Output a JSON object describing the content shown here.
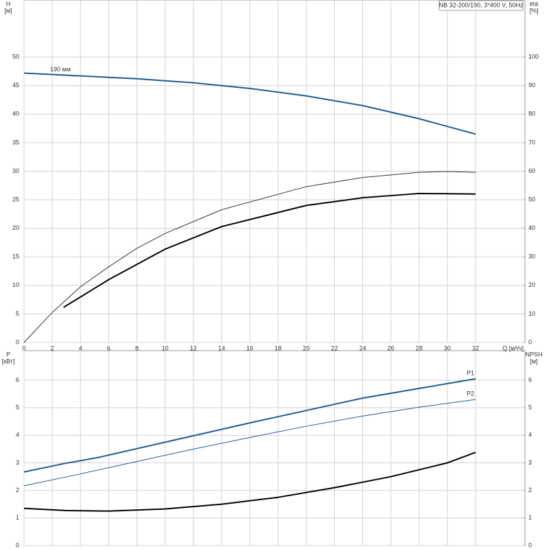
{
  "chart_data": [
    {
      "type": "line",
      "title": "NB 32-200/190, 3*400 V, 50Hz",
      "ylabel": "H",
      "yunit": "[м]",
      "y2label": "eta",
      "y2unit": "[%]",
      "xlabel": "Q [м³/ч]",
      "xlim": [
        0,
        35.5
      ],
      "xticks": [
        0,
        2,
        4,
        6,
        8,
        10,
        12,
        14,
        16,
        18,
        20,
        22,
        24,
        26,
        28,
        30,
        32
      ],
      "ylim": [
        0,
        60
      ],
      "yticks": [
        0,
        5,
        10,
        15,
        20,
        25,
        30,
        35,
        40,
        45,
        50
      ],
      "y2lim": [
        0,
        120
      ],
      "y2ticks": [
        0,
        10,
        20,
        30,
        40,
        50,
        60,
        70,
        80,
        90,
        100
      ],
      "grid": true,
      "show_xtick_labels": true,
      "series": [
        {
          "name": "190 мм",
          "label_at": "start",
          "color": "#1f5a8f",
          "width": 2,
          "x": [
            0,
            4,
            8,
            12,
            16,
            20,
            24,
            28,
            32
          ],
          "values": [
            47.2,
            46.7,
            46.2,
            45.5,
            44.5,
            43.2,
            41.5,
            39.2,
            36.5
          ]
        },
        {
          "color": "#333333",
          "width": 1,
          "axis": "y2",
          "x": [
            0,
            2,
            4,
            6,
            8,
            10,
            14,
            20,
            24,
            28,
            30,
            32
          ],
          "values": [
            0,
            10.5,
            19.5,
            26.5,
            33,
            38.2,
            46.5,
            54.6,
            57.8,
            59.6,
            59.9,
            59.6
          ]
        },
        {
          "color": "#000000",
          "width": 2,
          "axis": "y2",
          "x": [
            2.8,
            6,
            10,
            14,
            20,
            24,
            28,
            32
          ],
          "values": [
            12.3,
            22,
            32.7,
            40.6,
            48,
            50.7,
            52.2,
            52
          ]
        }
      ]
    },
    {
      "type": "line",
      "ylabel": "P",
      "yunit": "[кВт]",
      "y2label": "NPSH",
      "y2unit": "[м]",
      "xlim": [
        0,
        35.5
      ],
      "xticks": [
        0,
        2,
        4,
        6,
        8,
        10,
        12,
        14,
        16,
        18,
        20,
        22,
        24,
        26,
        28,
        30,
        32
      ],
      "ylim": [
        0,
        7.07
      ],
      "yticks": [
        0,
        1,
        2,
        3,
        4,
        5,
        6
      ],
      "y2lim": [
        0,
        7.07
      ],
      "y2ticks": [
        0,
        1,
        2,
        3,
        4,
        5,
        6
      ],
      "grid": true,
      "show_xtick_labels": false,
      "series": [
        {
          "name": "P1",
          "label_at": "end",
          "color": "#1f5a8f",
          "width": 2,
          "x": [
            0,
            2.8,
            5.3,
            10,
            16,
            20,
            24,
            28,
            32
          ],
          "values": [
            2.67,
            2.97,
            3.2,
            3.75,
            4.45,
            4.9,
            5.35,
            5.7,
            6.05
          ]
        },
        {
          "name": "P2",
          "label_at": "end",
          "color": "#1f5a8f",
          "width": 1,
          "x": [
            0,
            4,
            8,
            12,
            16,
            20,
            24,
            28,
            32
          ],
          "values": [
            2.17,
            2.6,
            3.05,
            3.5,
            3.92,
            4.33,
            4.7,
            5.02,
            5.3
          ]
        },
        {
          "color": "#000000",
          "width": 2,
          "axis": "y2",
          "x": [
            0,
            3,
            6,
            10,
            14,
            18,
            22,
            26,
            30,
            32
          ],
          "values": [
            1.35,
            1.27,
            1.25,
            1.33,
            1.5,
            1.75,
            2.1,
            2.5,
            3.0,
            3.38
          ]
        }
      ]
    }
  ]
}
